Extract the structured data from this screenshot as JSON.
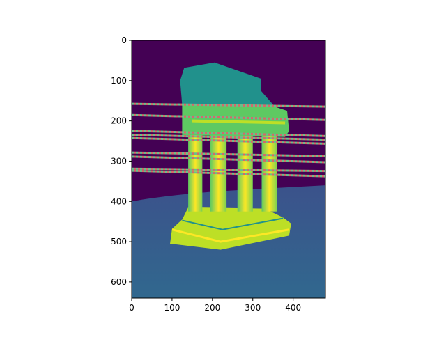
{
  "chart_data": {
    "type": "heatmap",
    "description_colormap": "viridis",
    "x_ticks": [
      0,
      100,
      200,
      300,
      400
    ],
    "y_ticks": [
      0,
      100,
      200,
      300,
      400,
      500,
      600
    ],
    "xlim": [
      0,
      480
    ],
    "ylim": [
      640,
      0
    ],
    "y_inverted": true,
    "colors": {
      "background_dark": "#440154",
      "plane_mid": "#3b528b",
      "plane_light": "#31688e",
      "object_mid": "#21918c",
      "object_light": "#5ec962",
      "object_bright": "#bddf26",
      "object_peak": "#fde725",
      "scanline_red": "#d46a6a",
      "scanline_green": "#6bbf8a"
    },
    "scan_lines": [
      {
        "y0": 155,
        "y1": 162
      },
      {
        "y0": 183,
        "y1": 195
      },
      {
        "y0": 222,
        "y1": 235
      },
      {
        "y0": 232,
        "y1": 244
      },
      {
        "y0": 240,
        "y1": 254
      },
      {
        "y0": 276,
        "y1": 285
      },
      {
        "y0": 286,
        "y1": 300
      },
      {
        "y0": 316,
        "y1": 322
      },
      {
        "y0": 321,
        "y1": 335
      }
    ]
  }
}
